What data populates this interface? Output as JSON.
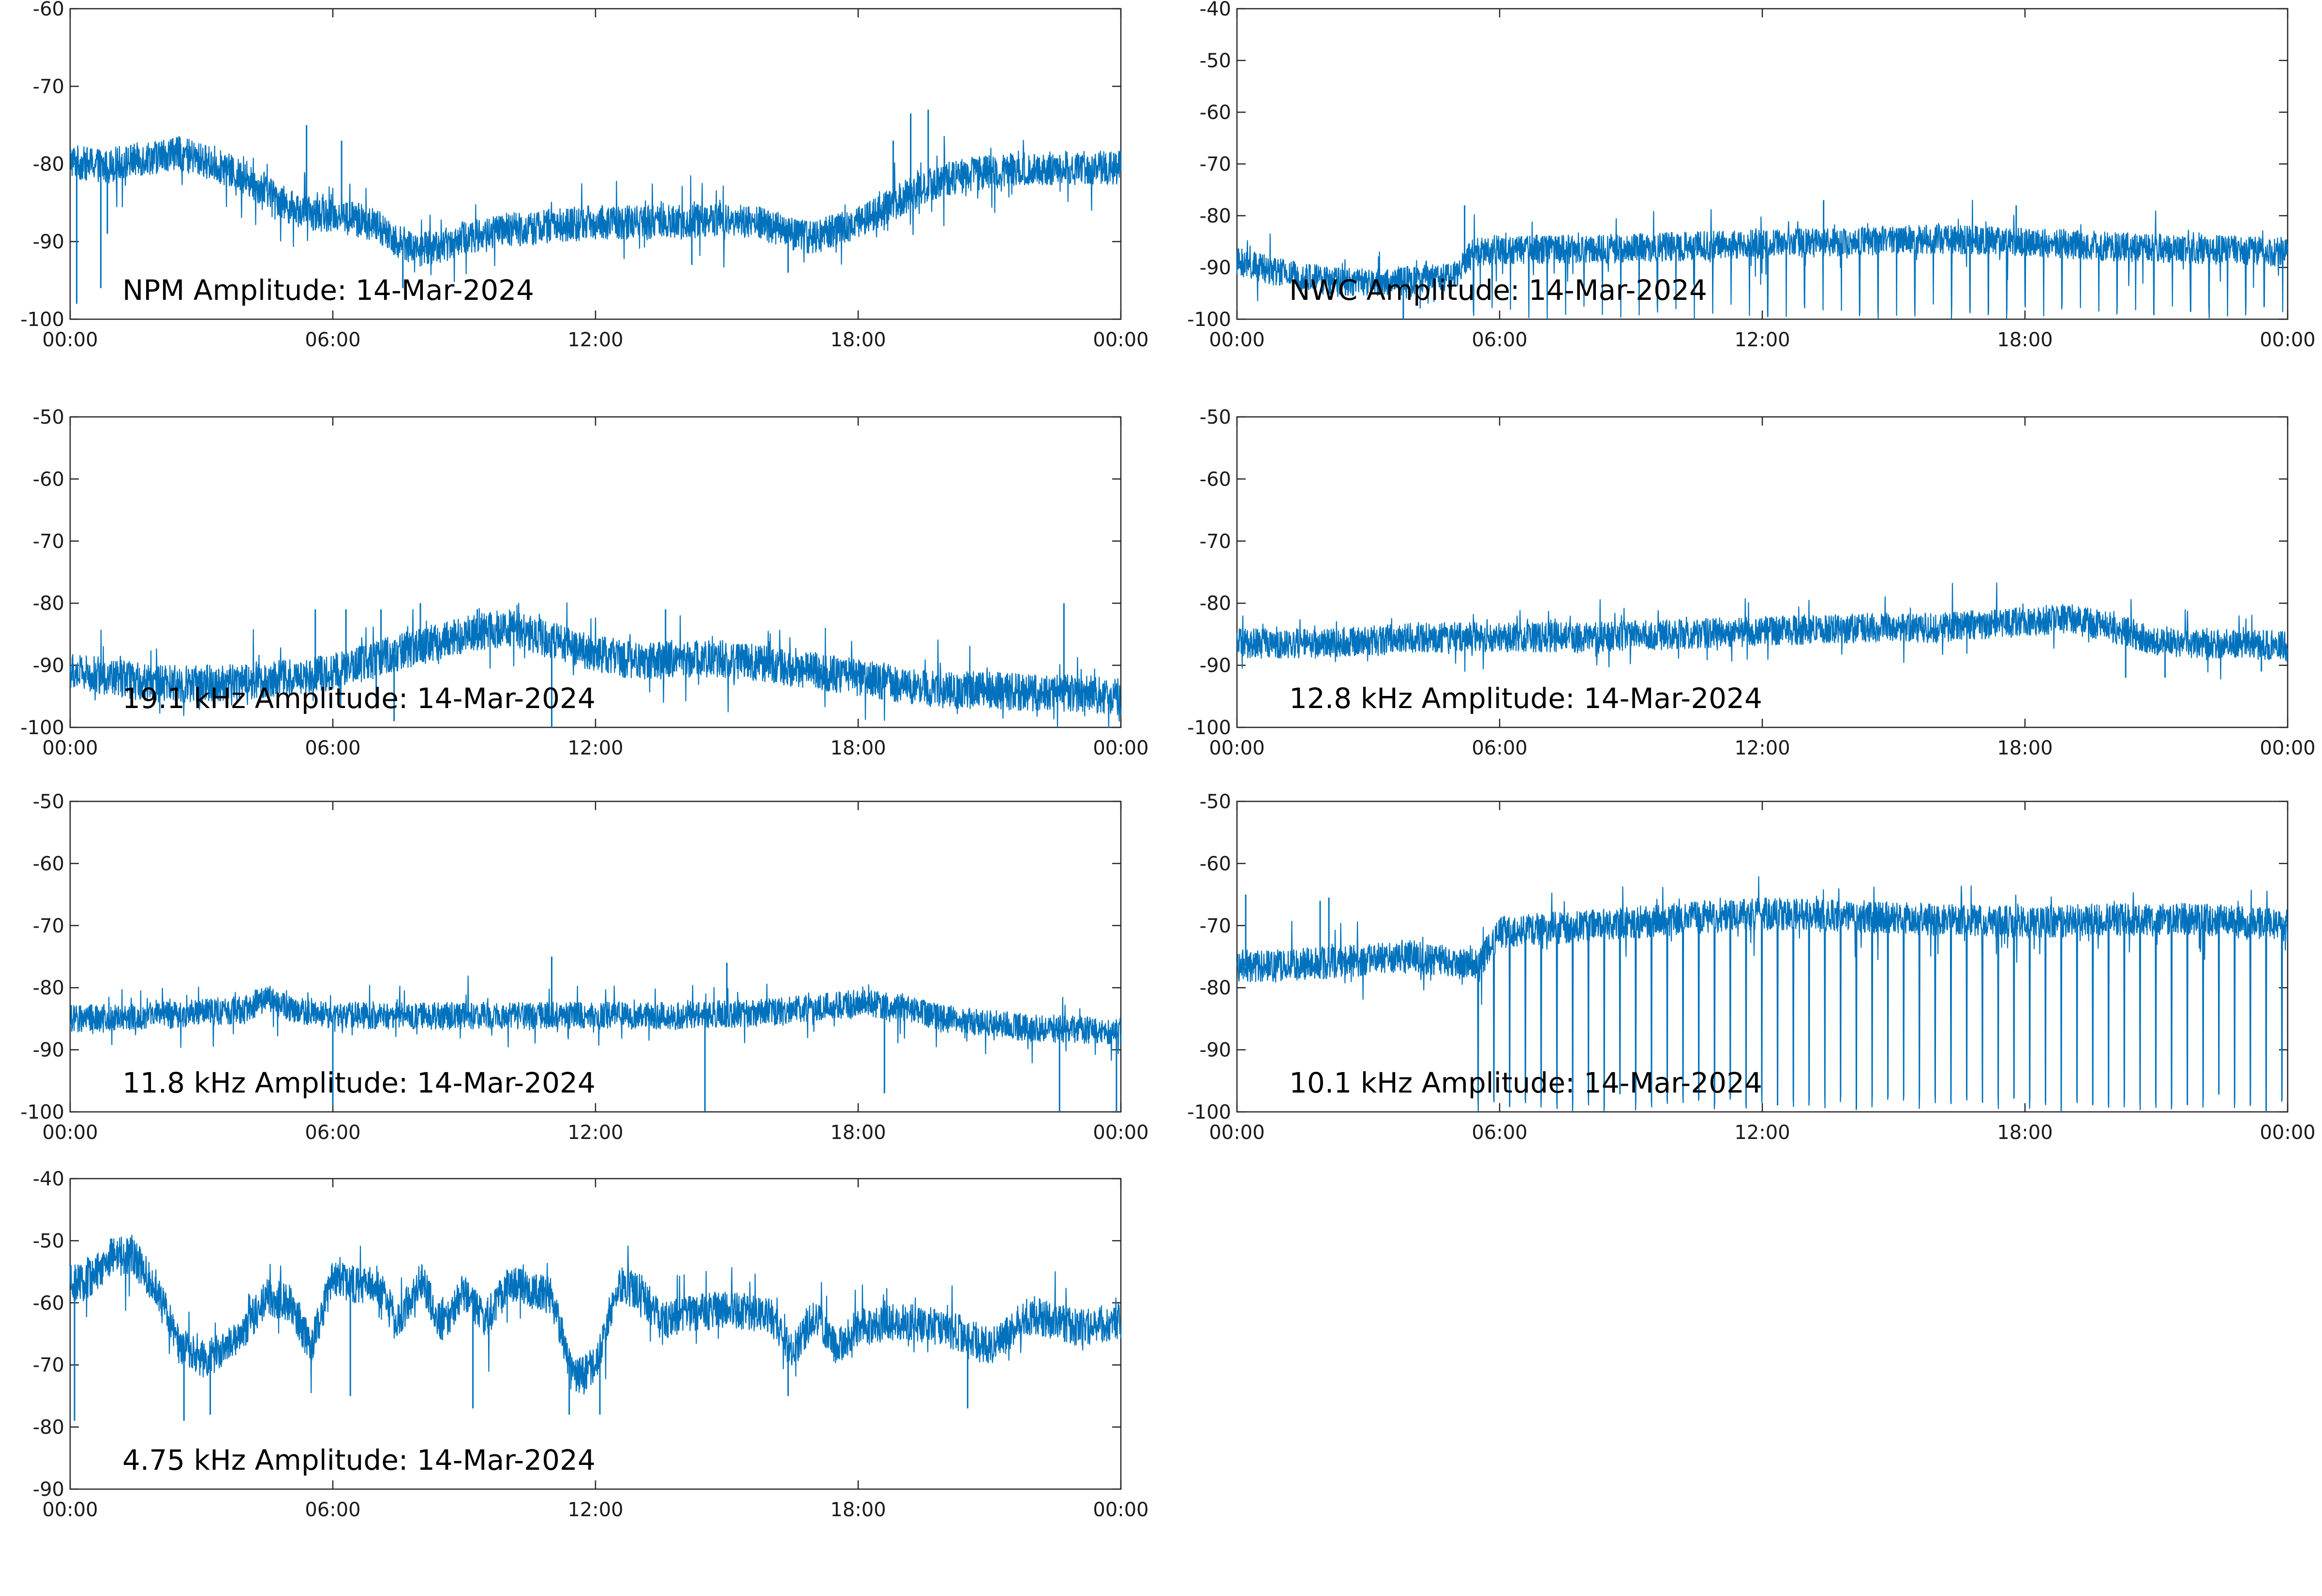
{
  "colors": {
    "trace": "#0072BD",
    "axes": "#262626",
    "background": "#ffffff"
  },
  "chart_data": [
    {
      "type": "line",
      "label": "NPM Amplitude: 14-Mar-2024",
      "x_ticks": [
        "00:00",
        "06:00",
        "12:00",
        "18:00",
        "00:00"
      ],
      "ylim": [
        -100,
        -60
      ],
      "y_ticks": [
        "-60",
        "-70",
        "-80",
        "-90",
        "-100"
      ],
      "grid": false,
      "series": [
        {
          "x_hours": [
            0,
            0.3,
            0.6,
            0.8,
            1.0,
            1.5,
            2.0,
            2.4,
            3.0,
            3.5,
            4.0,
            4.5,
            5.0,
            5.5,
            6.0,
            6.5,
            7.0,
            7.5,
            8.0,
            8.5,
            9.0,
            10.0,
            11.0,
            12.0,
            13.0,
            14.0,
            15.0,
            15.5,
            16.0,
            16.5,
            17.0,
            17.5,
            18.0,
            18.5,
            19.0,
            19.5,
            20.0,
            21.0,
            22.0,
            23.0,
            24.0
          ],
          "values": [
            -79.5,
            -80,
            -80,
            -80.5,
            -80,
            -79.5,
            -79,
            -78.5,
            -79.5,
            -80.5,
            -82,
            -83.5,
            -85.5,
            -86.5,
            -86.5,
            -87,
            -88,
            -90,
            -91,
            -90.5,
            -89.5,
            -88.5,
            -88,
            -87.5,
            -87.5,
            -87.5,
            -87,
            -87.5,
            -88,
            -89,
            -89.5,
            -88.5,
            -87.5,
            -86,
            -84.5,
            -83,
            -82,
            -81,
            -80.5,
            -80.5,
            -80.5
          ],
          "noise": 2.2,
          "spikes": [
            {
              "x": 0.15,
              "y": -98
            },
            {
              "x": 0.7,
              "y": -96
            },
            {
              "x": 0.85,
              "y": -89
            },
            {
              "x": 5.4,
              "y": -75
            },
            {
              "x": 6.2,
              "y": -77
            },
            {
              "x": 7.6,
              "y": -96
            },
            {
              "x": 14.2,
              "y": -93
            },
            {
              "x": 16.4,
              "y": -94
            },
            {
              "x": 18.8,
              "y": -77
            },
            {
              "x": 19.2,
              "y": -73.5
            },
            {
              "x": 19.6,
              "y": -73
            }
          ]
        }
      ]
    },
    {
      "type": "line",
      "label": "NWC Amplitude: 14-Mar-2024",
      "x_ticks": [
        "00:00",
        "06:00",
        "12:00",
        "18:00",
        "00:00"
      ],
      "ylim": [
        -100,
        -40
      ],
      "y_ticks": [
        "-40",
        "-50",
        "-60",
        "-70",
        "-80",
        "-90",
        "-100"
      ],
      "grid": false,
      "series": [
        {
          "x_hours": [
            0,
            1.0,
            2.0,
            3.0,
            4.0,
            5.0,
            5.4,
            6.0,
            8.0,
            10.0,
            12.0,
            14.0,
            16.0,
            18.0,
            20.0,
            22.0,
            24.0
          ],
          "values": [
            -89,
            -91,
            -92.5,
            -93,
            -92.5,
            -91.5,
            -87,
            -86.5,
            -86.5,
            -86,
            -85.5,
            -85,
            -84.5,
            -85,
            -86,
            -86.5,
            -87
          ],
          "noise": 2.8,
          "dropouts": {
            "start": 5.4,
            "end": 24.0,
            "every": 0.42,
            "depth": -100
          },
          "spikes": [
            {
              "x": 3.8,
              "y": -100
            },
            {
              "x": 5.2,
              "y": -78
            },
            {
              "x": 13.4,
              "y": -77
            },
            {
              "x": 17.8,
              "y": -78
            }
          ]
        }
      ]
    },
    {
      "type": "line",
      "label": "19.1 kHz Amplitude: 14-Mar-2024",
      "x_ticks": [
        "00:00",
        "06:00",
        "12:00",
        "18:00",
        "00:00"
      ],
      "ylim": [
        -100,
        -50
      ],
      "y_ticks": [
        "-50",
        "-60",
        "-70",
        "-80",
        "-90",
        "-100"
      ],
      "grid": false,
      "series": [
        {
          "x_hours": [
            0,
            1.0,
            2.0,
            3.0,
            4.0,
            5.0,
            6.0,
            7.0,
            8.0,
            9.0,
            10.0,
            11.0,
            12.0,
            13.0,
            14.0,
            15.0,
            16.0,
            17.0,
            18.0,
            19.0,
            20.0,
            21.0,
            22.0,
            23.0,
            24.0
          ],
          "values": [
            -91,
            -92,
            -93,
            -93,
            -92.5,
            -92,
            -91,
            -89,
            -87,
            -85,
            -84,
            -86,
            -88,
            -89.5,
            -89,
            -89,
            -90,
            -91,
            -92,
            -93,
            -94,
            -94,
            -94.5,
            -94.5,
            -95
          ],
          "noise": 3.0,
          "spikes": [
            {
              "x": 5.6,
              "y": -81
            },
            {
              "x": 6.3,
              "y": -81
            },
            {
              "x": 7.1,
              "y": -81
            },
            {
              "x": 8.0,
              "y": -80
            },
            {
              "x": 9.3,
              "y": -81
            },
            {
              "x": 13.6,
              "y": -81
            },
            {
              "x": 22.7,
              "y": -80
            },
            {
              "x": 7.4,
              "y": -99
            },
            {
              "x": 11.0,
              "y": -100
            }
          ]
        }
      ]
    },
    {
      "type": "line",
      "label": "12.8 kHz Amplitude: 14-Mar-2024",
      "x_ticks": [
        "00:00",
        "06:00",
        "12:00",
        "18:00",
        "00:00"
      ],
      "ylim": [
        -100,
        -50
      ],
      "y_ticks": [
        "-50",
        "-60",
        "-70",
        "-80",
        "-90",
        "-100"
      ],
      "grid": false,
      "series": [
        {
          "x_hours": [
            0,
            2.0,
            4.0,
            6.0,
            8.0,
            10.0,
            12.0,
            14.0,
            16.0,
            18.0,
            19.0,
            20.0,
            21.0,
            22.0,
            23.0,
            24.0
          ],
          "values": [
            -86.5,
            -86.5,
            -85.5,
            -85.5,
            -85.5,
            -85,
            -84.5,
            -84,
            -84,
            -83,
            -82.5,
            -84,
            -86,
            -86.5,
            -86.5,
            -87
          ],
          "noise": 2.4,
          "spikes": [
            {
              "x": 20.3,
              "y": -92
            },
            {
              "x": 21.2,
              "y": -92
            },
            {
              "x": 23.4,
              "y": -91
            }
          ]
        }
      ]
    },
    {
      "type": "line",
      "label": "11.8 kHz Amplitude: 14-Mar-2024",
      "x_ticks": [
        "00:00",
        "06:00",
        "12:00",
        "18:00",
        "00:00"
      ],
      "ylim": [
        -100,
        -50
      ],
      "y_ticks": [
        "-50",
        "-60",
        "-70",
        "-80",
        "-90",
        "-100"
      ],
      "grid": false,
      "series": [
        {
          "x_hours": [
            0,
            2.0,
            4.0,
            4.5,
            5.0,
            6.0,
            8.0,
            10.0,
            12.0,
            14.0,
            16.0,
            18.0,
            19.0,
            20.0,
            22.0,
            24.0
          ],
          "values": [
            -85,
            -84.5,
            -83.5,
            -81.5,
            -83.5,
            -84.5,
            -84.5,
            -84.5,
            -84.5,
            -84.5,
            -84,
            -82.5,
            -83,
            -85,
            -86.5,
            -87
          ],
          "noise": 2.2,
          "spikes": [
            {
              "x": 6.0,
              "y": -99
            },
            {
              "x": 14.5,
              "y": -100
            },
            {
              "x": 18.6,
              "y": -97
            },
            {
              "x": 22.6,
              "y": -100
            },
            {
              "x": 23.9,
              "y": -100
            },
            {
              "x": 15.0,
              "y": -76
            },
            {
              "x": 11.0,
              "y": -75
            }
          ]
        }
      ]
    },
    {
      "type": "line",
      "label": "10.1 kHz Amplitude: 14-Mar-2024",
      "x_ticks": [
        "00:00",
        "06:00",
        "12:00",
        "18:00",
        "00:00"
      ],
      "ylim": [
        -100,
        -50
      ],
      "y_ticks": [
        "-50",
        "-60",
        "-70",
        "-80",
        "-90",
        "-100"
      ],
      "grid": false,
      "series": [
        {
          "x_hours": [
            0,
            1.0,
            2.0,
            3.0,
            4.0,
            5.0,
            5.5,
            6.0,
            8.0,
            10.0,
            12.0,
            14.0,
            16.0,
            18.0,
            20.0,
            22.0,
            24.0
          ],
          "values": [
            -76.5,
            -76.5,
            -76,
            -75.5,
            -75,
            -76,
            -76.5,
            -71,
            -70,
            -69,
            -68,
            -68.5,
            -69,
            -69.5,
            -69,
            -69,
            -70
          ],
          "noise": 2.6,
          "dropouts": {
            "start": 5.5,
            "end": 24.0,
            "every": 0.36,
            "depth": -100
          },
          "spikes": [
            {
              "x": 0.2,
              "y": -65
            },
            {
              "x": 2.1,
              "y": -65.5
            },
            {
              "x": 1.9,
              "y": -66
            }
          ]
        }
      ]
    },
    {
      "type": "line",
      "label": "4.75 kHz Amplitude: 14-Mar-2024",
      "x_ticks": [
        "00:00",
        "06:00",
        "12:00",
        "18:00",
        "00:00"
      ],
      "ylim": [
        -90,
        -40
      ],
      "y_ticks": [
        "-40",
        "-50",
        "-60",
        "-70",
        "-80",
        "-90"
      ],
      "grid": false,
      "series": [
        {
          "x_hours": [
            0,
            0.5,
            1.0,
            1.5,
            2.0,
            2.5,
            3.0,
            3.5,
            4.0,
            4.5,
            5.0,
            5.5,
            6.0,
            6.5,
            7.0,
            7.5,
            8.0,
            8.5,
            9.0,
            9.5,
            10.0,
            10.5,
            11.0,
            11.5,
            12.0,
            12.5,
            13.0,
            13.5,
            14.0,
            15.0,
            16.0,
            16.5,
            17.0,
            17.5,
            18.0,
            19.0,
            20.0,
            21.0,
            22.0,
            23.0,
            24.0
          ],
          "values": [
            -57,
            -56,
            -52,
            -53,
            -58,
            -67,
            -69,
            -68,
            -64,
            -59,
            -60,
            -67,
            -56,
            -57,
            -57,
            -63,
            -56,
            -64,
            -58,
            -63,
            -57,
            -58,
            -59,
            -72,
            -70,
            -57,
            -58,
            -63,
            -62,
            -61,
            -62,
            -68,
            -62,
            -67,
            -64,
            -63,
            -64,
            -67,
            -62,
            -64,
            -63
          ],
          "noise": 3.0,
          "spikes": [
            {
              "x": 0.1,
              "y": -79
            },
            {
              "x": 2.6,
              "y": -79
            },
            {
              "x": 3.2,
              "y": -78
            },
            {
              "x": 11.4,
              "y": -78
            },
            {
              "x": 12.1,
              "y": -78
            },
            {
              "x": 6.4,
              "y": -75
            },
            {
              "x": 9.2,
              "y": -77
            },
            {
              "x": 16.4,
              "y": -75
            },
            {
              "x": 20.5,
              "y": -77
            }
          ]
        }
      ]
    }
  ]
}
